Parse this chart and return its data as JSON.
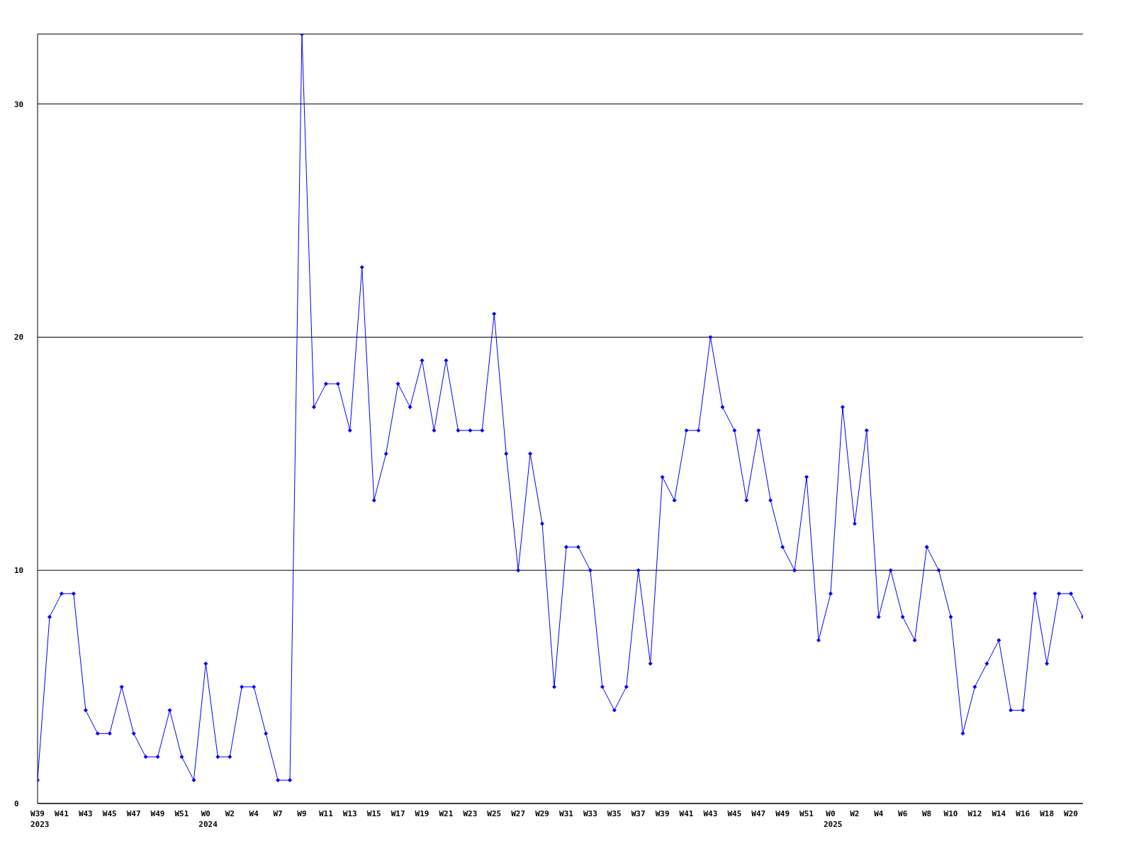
{
  "chart_data": {
    "type": "line",
    "categories": [
      "W39\n2023",
      null,
      "W41",
      null,
      "W43",
      null,
      "W45",
      null,
      "W47",
      null,
      "W49",
      null,
      "W51",
      null,
      "W0\n2024",
      null,
      "W2",
      null,
      "W4",
      null,
      "W7",
      null,
      "W9",
      null,
      "W11",
      null,
      "W13",
      null,
      "W15",
      null,
      "W17",
      null,
      "W19",
      null,
      "W21",
      null,
      "W23",
      null,
      "W25",
      null,
      "W27",
      null,
      "W29",
      null,
      "W31",
      null,
      "W33",
      null,
      "W35",
      null,
      "W37",
      null,
      "W39",
      null,
      "W41",
      null,
      "W43",
      null,
      "W45",
      null,
      "W47",
      null,
      "W49",
      null,
      "W51",
      null,
      "W0\n2025",
      null,
      "W2",
      null,
      "W4",
      null,
      "W6",
      null,
      "W8",
      null,
      "W10",
      null,
      "W12",
      null,
      "W14",
      null,
      "W16",
      null,
      "W18",
      null,
      "W20",
      null
    ],
    "series": [
      {
        "color": "#0000ff",
        "values": [
          1,
          8,
          9,
          9,
          4,
          3,
          3,
          5,
          3,
          2,
          2,
          4,
          2,
          1,
          6,
          2,
          2,
          5,
          5,
          3,
          1,
          1,
          33,
          17,
          18,
          18,
          16,
          23,
          13,
          15,
          18,
          17,
          19,
          16,
          19,
          16,
          16,
          16,
          21,
          15,
          10,
          15,
          12,
          5,
          11,
          11,
          10,
          5,
          4,
          5,
          10,
          6,
          14,
          13,
          16,
          16,
          20,
          17,
          16,
          13,
          16,
          13,
          11,
          10,
          14,
          7,
          9,
          17,
          12,
          16,
          8,
          10,
          8,
          7,
          11,
          10,
          8,
          3,
          5,
          6,
          7,
          4,
          4,
          9,
          6,
          9,
          9,
          8
        ]
      }
    ],
    "ylim": [
      0,
      33
    ],
    "yticks": [
      0,
      10,
      20,
      30
    ],
    "grid": "y",
    "marker": "diamond",
    "line_style": "solid",
    "legend": false
  }
}
